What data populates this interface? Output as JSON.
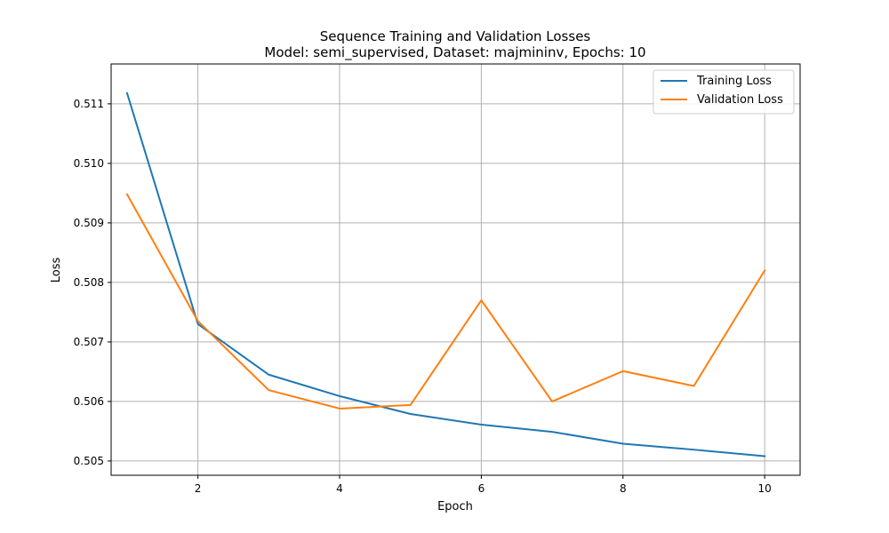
{
  "chart_data": {
    "type": "line",
    "title": "Sequence Training and Validation Losses",
    "subtitle": "Model: semi_supervised, Dataset: majmininv, Epochs: 10",
    "xlabel": "Epoch",
    "ylabel": "Loss",
    "x": [
      1,
      2,
      3,
      4,
      5,
      6,
      7,
      8,
      9,
      10
    ],
    "xlim": [
      0.775,
      10.5
    ],
    "ylim": [
      0.50476,
      0.51167
    ],
    "xticks": [
      2,
      4,
      6,
      8,
      10
    ],
    "yticks": [
      0.505,
      0.506,
      0.507,
      0.508,
      0.509,
      0.51,
      0.511
    ],
    "xtick_labels": [
      "2",
      "4",
      "6",
      "8",
      "10"
    ],
    "ytick_labels": [
      "0.505",
      "0.506",
      "0.507",
      "0.508",
      "0.509",
      "0.510",
      "0.511"
    ],
    "grid": true,
    "legend_position": "upper-right",
    "series": [
      {
        "name": "Training Loss",
        "color": "#1f77b4",
        "values": [
          0.51118,
          0.5073,
          0.50645,
          0.50609,
          0.50579,
          0.50561,
          0.50549,
          0.50529,
          0.50519,
          0.50508
        ]
      },
      {
        "name": "Validation Loss",
        "color": "#ff7f0e",
        "values": [
          0.50948,
          0.50735,
          0.50619,
          0.50588,
          0.50594,
          0.5077,
          0.506,
          0.50651,
          0.50626,
          0.5082
        ]
      }
    ]
  }
}
